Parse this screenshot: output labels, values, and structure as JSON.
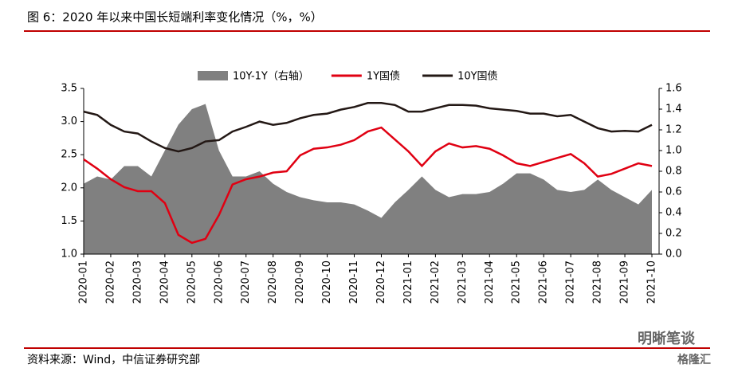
{
  "chart_data": {
    "type": "line",
    "title": "图 6：2020 年以来中国长短端利率变化情况（%，%）",
    "source": "资料来源：Wind，中信证券研究部",
    "watermark": "明晰笔谈",
    "watermark2": "格隆汇",
    "categories": [
      "2020-01",
      null,
      "2020-02",
      null,
      "2020-03",
      null,
      "2020-04",
      null,
      "2020-05",
      null,
      "2020-06",
      null,
      "2020-07",
      null,
      "2020-08",
      null,
      "2020-09",
      null,
      "2020-10",
      null,
      "2020-11",
      null,
      "2020-12",
      null,
      "2021-01",
      null,
      "2021-02",
      null,
      "2021-03",
      null,
      "2021-04",
      null,
      "2021-05",
      null,
      "2021-06",
      null,
      "2021-07",
      null,
      "2021-08",
      null,
      "2021-09",
      null,
      "2021-10"
    ],
    "ylim": [
      1.0,
      3.5
    ],
    "yticks": [
      {
        "value": 1.0,
        "label": "1.0"
      },
      1.5,
      {
        "value": 2.0,
        "label": "2.0"
      },
      2.5,
      {
        "value": 3.0,
        "label": "3.0"
      },
      3.5
    ],
    "y2lim": [
      0.0,
      1.6
    ],
    "y2ticks": [
      {
        "value": 0.0,
        "label": "0.0"
      },
      0.2,
      0.4,
      0.6,
      0.8,
      {
        "value": 1.0,
        "label": "1.0"
      },
      1.2,
      1.4,
      1.6
    ],
    "series": [
      {
        "name": "10Y-1Y（右轴）",
        "kind": "area",
        "axis": "y2",
        "color": "#808080",
        "values": [
          0.68,
          0.75,
          0.72,
          0.85,
          0.85,
          0.75,
          1.0,
          1.25,
          1.4,
          1.45,
          1.0,
          0.75,
          0.75,
          0.8,
          0.68,
          0.6,
          0.55,
          0.52,
          0.5,
          0.5,
          0.48,
          0.42,
          0.35,
          0.5,
          0.62,
          0.75,
          0.62,
          0.55,
          0.58,
          0.58,
          0.6,
          0.68,
          0.78,
          0.78,
          0.72,
          0.62,
          0.6,
          0.62,
          0.72,
          0.62,
          0.55,
          0.48,
          0.62
        ]
      },
      {
        "name": "1Y国债",
        "kind": "line",
        "color": "#e00012",
        "values": [
          2.43,
          2.29,
          2.13,
          2.01,
          1.95,
          1.95,
          1.77,
          1.29,
          1.17,
          1.23,
          1.59,
          2.05,
          2.13,
          2.17,
          2.23,
          2.25,
          2.49,
          2.59,
          2.61,
          2.65,
          2.72,
          2.85,
          2.91,
          2.73,
          2.55,
          2.33,
          2.55,
          2.67,
          2.61,
          2.63,
          2.59,
          2.49,
          2.37,
          2.33,
          2.39,
          2.45,
          2.51,
          2.37,
          2.17,
          2.21,
          2.29,
          2.37,
          2.33
        ]
      },
      {
        "name": "10Y国债",
        "kind": "line",
        "color": "#231815",
        "values": [
          3.15,
          3.1,
          2.95,
          2.85,
          2.82,
          2.7,
          2.6,
          2.55,
          2.6,
          2.7,
          2.72,
          2.85,
          2.92,
          3.0,
          2.95,
          2.98,
          3.05,
          3.1,
          3.12,
          3.18,
          3.22,
          3.28,
          3.28,
          3.25,
          3.15,
          3.15,
          3.2,
          3.25,
          3.25,
          3.24,
          3.2,
          3.18,
          3.16,
          3.12,
          3.12,
          3.08,
          3.1,
          3.0,
          2.9,
          2.85,
          2.86,
          2.85,
          2.95
        ]
      }
    ]
  }
}
